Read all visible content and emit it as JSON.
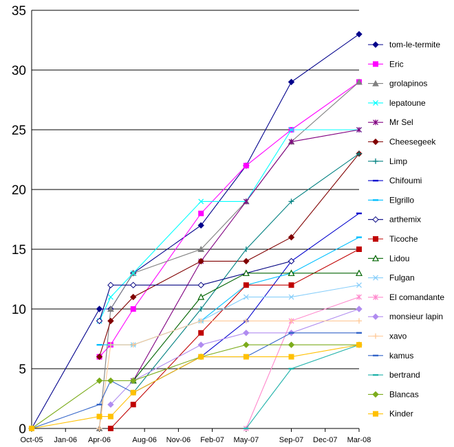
{
  "chart_data": {
    "type": "line",
    "title": "",
    "xlabel": "",
    "ylabel": "",
    "ylim": [
      0,
      35
    ],
    "yticks": [
      0,
      5,
      10,
      15,
      20,
      25,
      30,
      35
    ],
    "xlim": [
      "2005-10",
      "2008-03"
    ],
    "xticks": [
      "Oct-05",
      "Jan-06",
      "Apr-06",
      "Aug-06",
      "Nov-06",
      "Feb-07",
      "May-07",
      "Sep-07",
      "Dec-07",
      "Mar-08"
    ],
    "xtick_dates": [
      "2005-10",
      "2006-01",
      "2006-04",
      "2006-08",
      "2006-11",
      "2007-02",
      "2007-05",
      "2007-09",
      "2007-12",
      "2008-03"
    ],
    "grid": "horizontal",
    "legend_position": "right",
    "series": [
      {
        "name": "tom-le-termite",
        "color": "#00008b",
        "marker": "diamond",
        "points": [
          [
            "2005-10",
            0
          ],
          [
            "2006-04",
            10
          ],
          [
            "2006-05",
            10
          ],
          [
            "2006-07",
            13
          ],
          [
            "2007-01",
            17
          ],
          [
            "2007-05",
            22
          ],
          [
            "2007-09",
            29
          ],
          [
            "2008-03",
            33
          ]
        ]
      },
      {
        "name": "Eric",
        "color": "#ff00ff",
        "marker": "square",
        "points": [
          [
            "2006-04",
            6
          ],
          [
            "2006-05",
            7
          ],
          [
            "2006-07",
            10
          ],
          [
            "2007-01",
            18
          ],
          [
            "2007-05",
            22
          ],
          [
            "2007-09",
            25
          ],
          [
            "2008-03",
            29
          ]
        ]
      },
      {
        "name": "grolapinos",
        "color": "#808080",
        "marker": "triangle",
        "points": [
          [
            "2006-04",
            0
          ],
          [
            "2006-05",
            10
          ],
          [
            "2006-07",
            13
          ],
          [
            "2007-01",
            15
          ],
          [
            "2007-05",
            19
          ],
          [
            "2007-09",
            24
          ],
          [
            "2008-03",
            29
          ]
        ]
      },
      {
        "name": "lepatoune",
        "color": "#00ffff",
        "marker": "x",
        "points": [
          [
            "2006-04",
            9
          ],
          [
            "2006-05",
            11
          ],
          [
            "2006-07",
            13
          ],
          [
            "2007-01",
            19
          ],
          [
            "2007-05",
            19
          ],
          [
            "2007-09",
            25
          ],
          [
            "2008-03",
            25
          ]
        ]
      },
      {
        "name": "Mr Sel",
        "color": "#800080",
        "marker": "star",
        "points": [
          [
            "2006-07",
            4
          ],
          [
            "2007-01",
            14
          ],
          [
            "2007-05",
            19
          ],
          [
            "2007-09",
            24
          ],
          [
            "2008-03",
            25
          ]
        ]
      },
      {
        "name": "Cheesegeek",
        "color": "#800000",
        "marker": "diamond",
        "points": [
          [
            "2006-04",
            6
          ],
          [
            "2006-05",
            9
          ],
          [
            "2006-07",
            11
          ],
          [
            "2007-01",
            14
          ],
          [
            "2007-05",
            14
          ],
          [
            "2007-09",
            16
          ],
          [
            "2008-03",
            23
          ]
        ]
      },
      {
        "name": "Limp",
        "color": "#008080",
        "marker": "plus",
        "points": [
          [
            "2006-07",
            3
          ],
          [
            "2007-01",
            10
          ],
          [
            "2007-05",
            15
          ],
          [
            "2007-09",
            19
          ],
          [
            "2008-03",
            23
          ]
        ]
      },
      {
        "name": "Chifoumi",
        "color": "#0000cd",
        "marker": "dash",
        "points": [
          [
            "2006-07",
            3
          ],
          [
            "2007-01",
            6
          ],
          [
            "2007-05",
            9
          ],
          [
            "2007-09",
            14
          ],
          [
            "2008-03",
            18
          ]
        ]
      },
      {
        "name": "Elgrillo",
        "color": "#00bfff",
        "marker": "dash",
        "points": [
          [
            "2006-04",
            7
          ],
          [
            "2006-05",
            7
          ],
          [
            "2006-07",
            7
          ],
          [
            "2007-01",
            9
          ],
          [
            "2007-05",
            12
          ],
          [
            "2007-09",
            13
          ],
          [
            "2008-03",
            16
          ]
        ]
      },
      {
        "name": "arthemix",
        "color": "#000080",
        "marker": "diamond-open",
        "points": [
          [
            "2006-04",
            9
          ],
          [
            "2006-05",
            12
          ],
          [
            "2006-07",
            12
          ],
          [
            "2007-01",
            12
          ],
          [
            "2007-09",
            14
          ]
        ]
      },
      {
        "name": "Ticoche",
        "color": "#c00000",
        "marker": "square",
        "points": [
          [
            "2006-05",
            0
          ],
          [
            "2006-07",
            2
          ],
          [
            "2007-01",
            8
          ],
          [
            "2007-05",
            12
          ],
          [
            "2007-09",
            12
          ],
          [
            "2008-03",
            15
          ]
        ]
      },
      {
        "name": "Lidou",
        "color": "#006400",
        "marker": "triangle-open",
        "points": [
          [
            "2006-07",
            4
          ],
          [
            "2007-01",
            11
          ],
          [
            "2007-05",
            13
          ],
          [
            "2007-09",
            13
          ],
          [
            "2008-03",
            13
          ]
        ]
      },
      {
        "name": "Fulgan",
        "color": "#87cefa",
        "marker": "x",
        "points": [
          [
            "2006-07",
            7
          ],
          [
            "2007-01",
            9
          ],
          [
            "2007-05",
            11
          ],
          [
            "2007-09",
            11
          ],
          [
            "2008-03",
            12
          ]
        ]
      },
      {
        "name": "El comandante",
        "color": "#ff88cc",
        "marker": "star",
        "points": [
          [
            "2007-05",
            0
          ],
          [
            "2007-09",
            9
          ],
          [
            "2008-03",
            11
          ]
        ]
      },
      {
        "name": "monsieur lapin",
        "color": "#b08cf0",
        "marker": "diamond",
        "points": [
          [
            "2006-05",
            2
          ],
          [
            "2006-07",
            4
          ],
          [
            "2007-01",
            7
          ],
          [
            "2007-05",
            8
          ],
          [
            "2007-09",
            8
          ],
          [
            "2008-03",
            10
          ]
        ]
      },
      {
        "name": "xavo",
        "color": "#ffc896",
        "marker": "plus",
        "points": [
          [
            "2006-04",
            0
          ],
          [
            "2006-05",
            7
          ],
          [
            "2006-07",
            7
          ],
          [
            "2007-01",
            9
          ],
          [
            "2007-05",
            9
          ],
          [
            "2007-09",
            9
          ],
          [
            "2008-03",
            9
          ]
        ]
      },
      {
        "name": "kamus",
        "color": "#3264c8",
        "marker": "dash",
        "points": [
          [
            "2005-10",
            0
          ],
          [
            "2006-04",
            2
          ],
          [
            "2006-05",
            4
          ],
          [
            "2006-07",
            3
          ],
          [
            "2007-01",
            6
          ],
          [
            "2007-05",
            6
          ],
          [
            "2007-09",
            8
          ],
          [
            "2008-03",
            8
          ]
        ]
      },
      {
        "name": "bertrand",
        "color": "#20b2aa",
        "marker": "dash",
        "points": [
          [
            "2007-05",
            0
          ],
          [
            "2007-09",
            5
          ],
          [
            "2008-03",
            7
          ]
        ]
      },
      {
        "name": "Blancas",
        "color": "#7cac1c",
        "marker": "diamond",
        "points": [
          [
            "2005-10",
            0
          ],
          [
            "2006-04",
            4
          ],
          [
            "2006-05",
            4
          ],
          [
            "2006-07",
            4
          ],
          [
            "2007-01",
            6
          ],
          [
            "2007-05",
            7
          ],
          [
            "2007-09",
            7
          ],
          [
            "2008-03",
            7
          ]
        ]
      },
      {
        "name": "Kinder",
        "color": "#ffc000",
        "marker": "square",
        "points": [
          [
            "2005-10",
            0
          ],
          [
            "2006-04",
            1
          ],
          [
            "2006-05",
            1
          ],
          [
            "2006-07",
            3
          ],
          [
            "2007-01",
            6
          ],
          [
            "2007-05",
            6
          ],
          [
            "2007-09",
            6
          ],
          [
            "2008-03",
            7
          ]
        ]
      }
    ]
  }
}
